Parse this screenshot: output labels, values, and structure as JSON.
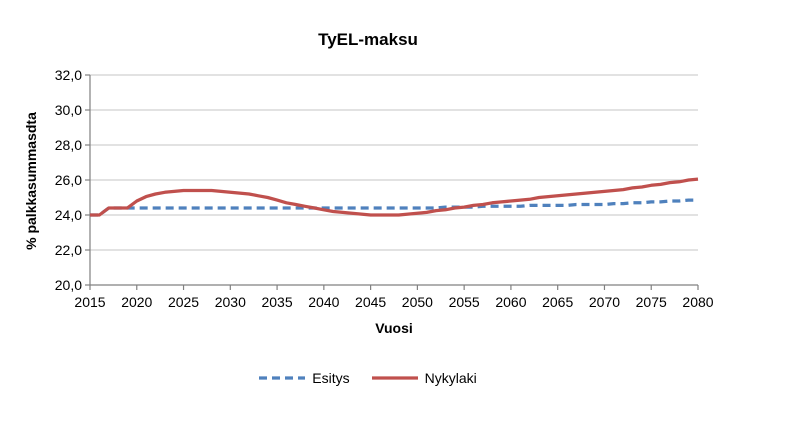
{
  "chart_data": {
    "type": "line",
    "title": "TyEL-maksu",
    "xlabel": "Vuosi",
    "ylabel": "% palkkasummasdta",
    "xlim": [
      2015,
      2080
    ],
    "ylim": [
      20,
      32
    ],
    "x_ticks": [
      2015,
      2020,
      2025,
      2030,
      2035,
      2040,
      2045,
      2050,
      2055,
      2060,
      2065,
      2070,
      2075,
      2080
    ],
    "y_ticks": [
      20,
      22,
      24,
      26,
      28,
      30,
      32
    ],
    "y_tick_labels": [
      "20,0",
      "22,0",
      "24,0",
      "26,0",
      "28,0",
      "30,0",
      "32,0"
    ],
    "grid": "horizontal",
    "legend_position": "bottom",
    "decimal_separator": ",",
    "x": [
      2015,
      2016,
      2017,
      2018,
      2019,
      2020,
      2021,
      2022,
      2023,
      2024,
      2025,
      2026,
      2027,
      2028,
      2029,
      2030,
      2031,
      2032,
      2033,
      2034,
      2035,
      2036,
      2037,
      2038,
      2039,
      2040,
      2041,
      2042,
      2043,
      2044,
      2045,
      2046,
      2047,
      2048,
      2049,
      2050,
      2051,
      2052,
      2053,
      2054,
      2055,
      2056,
      2057,
      2058,
      2059,
      2060,
      2061,
      2062,
      2063,
      2064,
      2065,
      2066,
      2067,
      2068,
      2069,
      2070,
      2071,
      2072,
      2073,
      2074,
      2075,
      2076,
      2077,
      2078,
      2079,
      2080
    ],
    "series": [
      {
        "name": "Esitys",
        "color": "#4F81BD",
        "style": "dashed",
        "values": [
          24.0,
          24.0,
          24.4,
          24.4,
          24.4,
          24.4,
          24.4,
          24.4,
          24.4,
          24.4,
          24.4,
          24.4,
          24.4,
          24.4,
          24.4,
          24.4,
          24.4,
          24.4,
          24.4,
          24.4,
          24.4,
          24.4,
          24.4,
          24.4,
          24.4,
          24.4,
          24.4,
          24.4,
          24.4,
          24.4,
          24.4,
          24.4,
          24.4,
          24.4,
          24.4,
          24.4,
          24.4,
          24.4,
          24.45,
          24.45,
          24.45,
          24.45,
          24.5,
          24.5,
          24.5,
          24.5,
          24.5,
          24.55,
          24.55,
          24.55,
          24.55,
          24.55,
          24.6,
          24.6,
          24.6,
          24.6,
          24.65,
          24.65,
          24.7,
          24.7,
          24.75,
          24.75,
          24.8,
          24.8,
          24.85,
          24.85
        ]
      },
      {
        "name": "Nykylaki",
        "color": "#C0504D",
        "style": "solid",
        "values": [
          24.0,
          24.0,
          24.4,
          24.4,
          24.4,
          24.8,
          25.05,
          25.2,
          25.3,
          25.35,
          25.4,
          25.4,
          25.4,
          25.4,
          25.35,
          25.3,
          25.25,
          25.2,
          25.1,
          25.0,
          24.85,
          24.7,
          24.6,
          24.5,
          24.4,
          24.3,
          24.2,
          24.15,
          24.1,
          24.05,
          24.0,
          24.0,
          24.0,
          24.0,
          24.05,
          24.1,
          24.15,
          24.25,
          24.3,
          24.4,
          24.45,
          24.55,
          24.6,
          24.7,
          24.75,
          24.8,
          24.85,
          24.9,
          25.0,
          25.05,
          25.1,
          25.15,
          25.2,
          25.25,
          25.3,
          25.35,
          25.4,
          25.45,
          25.55,
          25.6,
          25.7,
          25.75,
          25.85,
          25.9,
          26.0,
          26.05
        ]
      }
    ],
    "colors": {
      "axis": "#808080",
      "gridline": "#C6C6C6",
      "text": "#000000"
    }
  }
}
